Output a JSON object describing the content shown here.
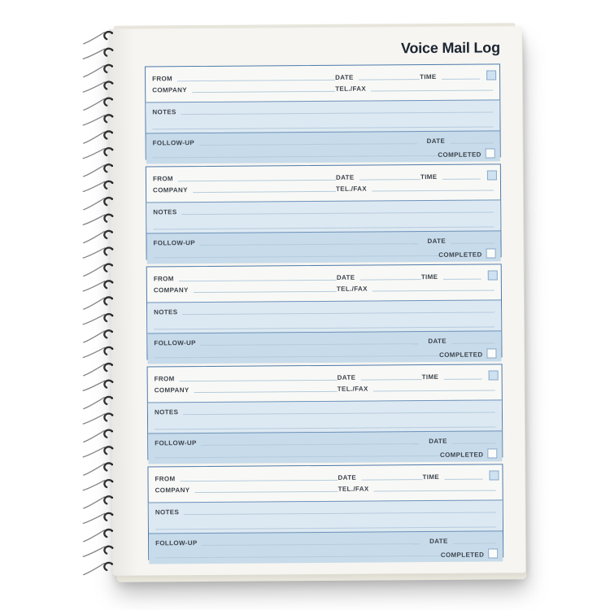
{
  "page_title": "Voice Mail Log",
  "binding": {
    "icon": "spiral-binding",
    "coil_count": 33
  },
  "colors": {
    "page_bg": "#f6f5f1",
    "title_text": "#1c2531",
    "label_text": "#3d434c",
    "section_border": "#4d79ab",
    "header_band_bg": "#f8f9f6",
    "notes_band_bg": "#dde9f2",
    "follow_up_band_bg": "#c7dbea",
    "field_line": "#b6cbdd",
    "time_checkbox_fill": "#cfe2f1",
    "completed_checkbox_fill": "#fbfcf9"
  },
  "form_sections": [
    {
      "from_label": "FROM",
      "date_label": "DATE",
      "time_label": "TIME",
      "company_label": "COMPANY",
      "tel_fax_label": "TEL./FAX",
      "notes_label": "NOTES",
      "follow_up_label": "FOLLOW-UP",
      "follow_up_date_label": "DATE",
      "completed_label": "COMPLETED"
    },
    {
      "from_label": "FROM",
      "date_label": "DATE",
      "time_label": "TIME",
      "company_label": "COMPANY",
      "tel_fax_label": "TEL./FAX",
      "notes_label": "NOTES",
      "follow_up_label": "FOLLOW-UP",
      "follow_up_date_label": "DATE",
      "completed_label": "COMPLETED"
    },
    {
      "from_label": "FROM",
      "date_label": "DATE",
      "time_label": "TIME",
      "company_label": "COMPANY",
      "tel_fax_label": "TEL./FAX",
      "notes_label": "NOTES",
      "follow_up_label": "FOLLOW-UP",
      "follow_up_date_label": "DATE",
      "completed_label": "COMPLETED"
    },
    {
      "from_label": "FROM",
      "date_label": "DATE",
      "time_label": "TIME",
      "company_label": "COMPANY",
      "tel_fax_label": "TEL./FAX",
      "notes_label": "NOTES",
      "follow_up_label": "FOLLOW-UP",
      "follow_up_date_label": "DATE",
      "completed_label": "COMPLETED"
    },
    {
      "from_label": "FROM",
      "date_label": "DATE",
      "time_label": "TIME",
      "company_label": "COMPANY",
      "tel_fax_label": "TEL./FAX",
      "notes_label": "NOTES",
      "follow_up_label": "FOLLOW-UP",
      "follow_up_date_label": "DATE",
      "completed_label": "COMPLETED"
    }
  ]
}
